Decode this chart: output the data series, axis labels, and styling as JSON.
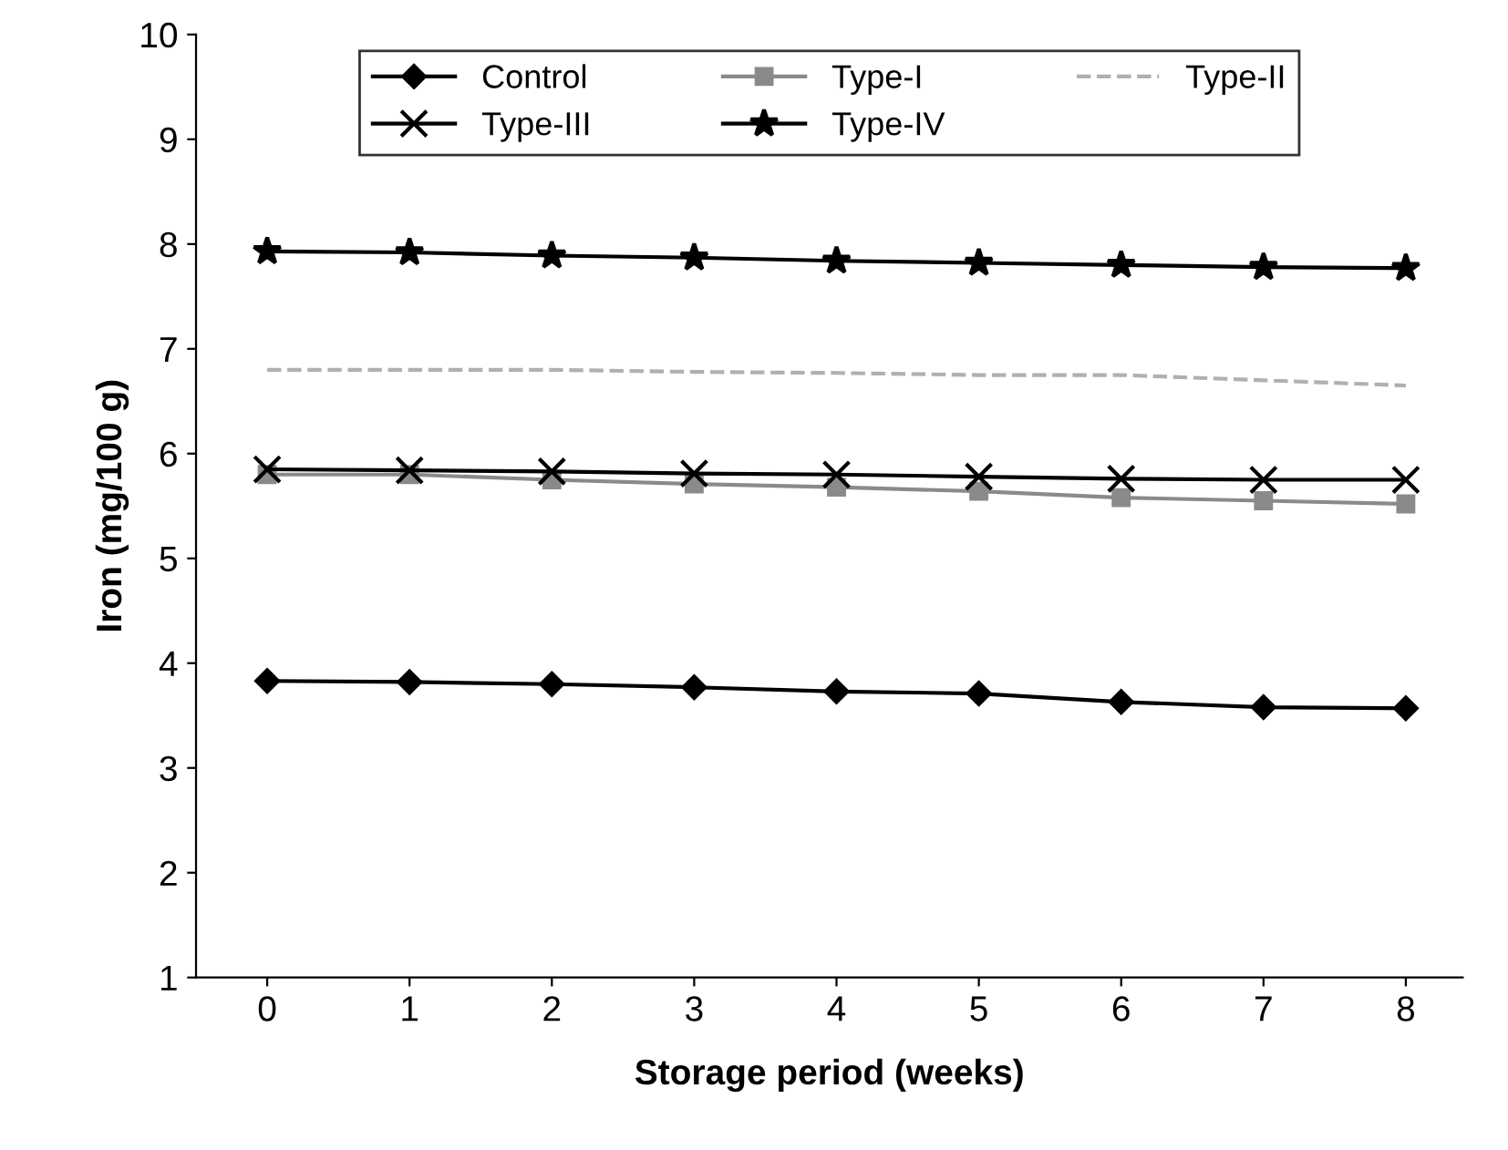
{
  "chart_data": {
    "type": "line",
    "xlabel": "Storage period (weeks)",
    "ylabel": "Iron (mg/100 g)",
    "x": [
      0,
      1,
      2,
      3,
      4,
      5,
      6,
      7,
      8
    ],
    "xlim": [
      -0.5,
      8.4
    ],
    "xticks": [
      0,
      1,
      2,
      3,
      4,
      5,
      6,
      7,
      8
    ],
    "ylim": [
      1,
      10
    ],
    "yticks": [
      1,
      2,
      3,
      4,
      5,
      6,
      7,
      8,
      9,
      10
    ],
    "grid": false,
    "legend": "top",
    "series": [
      {
        "name": "Control",
        "color": "#000000",
        "marker": "diamond",
        "line_style": "solid",
        "values": [
          3.83,
          3.82,
          3.8,
          3.77,
          3.73,
          3.71,
          3.63,
          3.58,
          3.57
        ]
      },
      {
        "name": "Type-I",
        "color": "#8a8a8a",
        "marker": "square",
        "line_style": "solid",
        "values": [
          5.8,
          5.8,
          5.75,
          5.71,
          5.68,
          5.64,
          5.58,
          5.55,
          5.52
        ]
      },
      {
        "name": "Type-II",
        "color": "#b0b0b0",
        "marker": "none",
        "line_style": "dashed",
        "values": [
          6.8,
          6.8,
          6.8,
          6.78,
          6.77,
          6.75,
          6.75,
          6.7,
          6.65
        ]
      },
      {
        "name": "Type-III",
        "color": "#000000",
        "marker": "cross",
        "line_style": "solid",
        "values": [
          5.85,
          5.84,
          5.83,
          5.81,
          5.8,
          5.78,
          5.76,
          5.75,
          5.75
        ]
      },
      {
        "name": "Type-IV",
        "color": "#000000",
        "marker": "star",
        "line_style": "solid",
        "values": [
          7.93,
          7.92,
          7.89,
          7.87,
          7.84,
          7.82,
          7.8,
          7.78,
          7.77
        ]
      }
    ]
  }
}
